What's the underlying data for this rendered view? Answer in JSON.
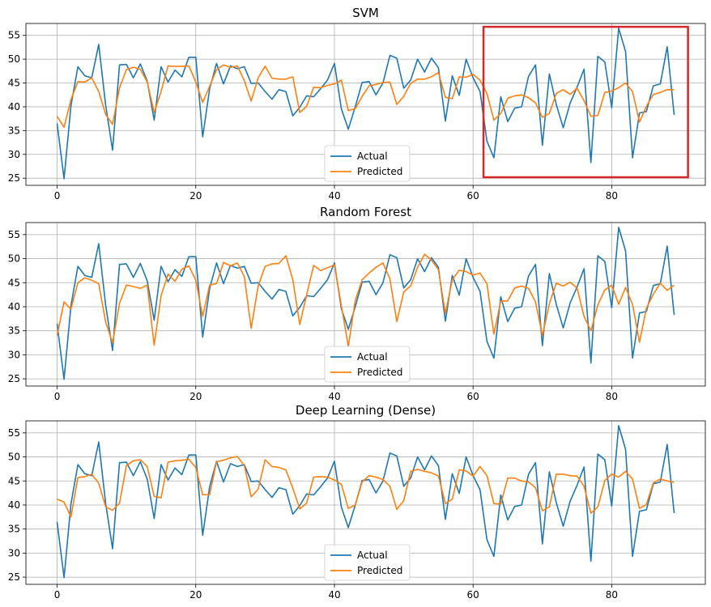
{
  "colors": {
    "actual": "#1f77b4",
    "predicted": "#ff7f0e",
    "highlight": "#d62728",
    "grid": "#b0b0b0"
  },
  "chart_data": [
    {
      "type": "line",
      "title": "SVM",
      "xlabel": "",
      "ylabel": "",
      "xlim": [
        -4.5,
        93.5
      ],
      "ylim": [
        23.5,
        57.5
      ],
      "xticks": [
        0,
        20,
        40,
        60,
        80
      ],
      "yticks": [
        25,
        30,
        35,
        40,
        45,
        50,
        55
      ],
      "grid": true,
      "legend": "lower-center",
      "highlight_x_range": [
        61.5,
        91
      ],
      "highlight_y_range": [
        25.2,
        56.8
      ],
      "series": [
        {
          "name": "Actual",
          "x_start": 0,
          "values": [
            36.5,
            24.9,
            40.2,
            48.4,
            46.5,
            46.1,
            53.1,
            40.3,
            30.9,
            48.8,
            48.9,
            46.1,
            49.0,
            45.4,
            37.2,
            48.4,
            45.2,
            47.7,
            46.3,
            50.4,
            50.4,
            33.7,
            43.8,
            49.1,
            44.8,
            48.6,
            48.0,
            48.4,
            44.9,
            45.0,
            43.2,
            41.6,
            43.6,
            43.2,
            38.1,
            39.9,
            42.3,
            42.1,
            43.8,
            45.6,
            49.1,
            39.6,
            35.3,
            40.0,
            45.1,
            45.3,
            42.5,
            45.0,
            50.8,
            50.2,
            43.9,
            45.6,
            50.0,
            47.3,
            50.2,
            48.2,
            37.0,
            46.5,
            42.4,
            50.0,
            46.1,
            43.2,
            32.8,
            29.3,
            42.1,
            36.9,
            39.7,
            40.0,
            46.4,
            48.8,
            31.9,
            46.9,
            40.5,
            35.6,
            40.8,
            44.1,
            47.9,
            28.3,
            50.6,
            49.4,
            39.8,
            56.5,
            51.6,
            29.3,
            38.7,
            39.0,
            44.4,
            44.8,
            52.6,
            38.3
          ]
        },
        {
          "name": "Predicted",
          "x_start": 0,
          "values": [
            38.0,
            35.7,
            41.5,
            45.3,
            45.2,
            46.1,
            43.2,
            38.4,
            36.3,
            44.0,
            47.8,
            48.3,
            47.9,
            45.2,
            38.8,
            43.2,
            48.6,
            48.5,
            48.5,
            48.6,
            45.2,
            40.9,
            44.3,
            47.8,
            48.8,
            48.3,
            48.6,
            45.5,
            41.2,
            46.1,
            48.5,
            46.0,
            45.8,
            45.8,
            46.3,
            38.8,
            40.1,
            44.1,
            44.0,
            44.5,
            44.8,
            45.6,
            39.2,
            39.6,
            42.2,
            44.4,
            44.7,
            45.1,
            45.2,
            40.5,
            42.2,
            44.9,
            45.8,
            45.8,
            46.3,
            47.2,
            42.0,
            41.7,
            46.3,
            46.2,
            46.8,
            45.6,
            42.8,
            37.2,
            38.6,
            41.8,
            42.3,
            42.5,
            41.9,
            40.8,
            37.8,
            38.6,
            42.8,
            43.6,
            42.6,
            43.9,
            41.3,
            38.0,
            38.2,
            43.0,
            43.3,
            44.0,
            45.0,
            43.2,
            36.8,
            40.1,
            42.6,
            43.0,
            43.6,
            43.6
          ]
        }
      ]
    },
    {
      "type": "line",
      "title": "Random Forest",
      "xlabel": "",
      "ylabel": "",
      "xlim": [
        -4.5,
        93.5
      ],
      "ylim": [
        23.5,
        57.5
      ],
      "xticks": [
        0,
        20,
        40,
        60,
        80
      ],
      "yticks": [
        25,
        30,
        35,
        40,
        45,
        50,
        55
      ],
      "grid": true,
      "legend": "lower-center",
      "series": [
        {
          "name": "Actual",
          "x_start": 0,
          "values": [
            36.5,
            24.9,
            40.2,
            48.4,
            46.5,
            46.1,
            53.1,
            40.3,
            30.9,
            48.8,
            48.9,
            46.1,
            49.0,
            45.4,
            37.2,
            48.4,
            45.2,
            47.7,
            46.3,
            50.4,
            50.4,
            33.7,
            43.8,
            49.1,
            44.8,
            48.6,
            48.0,
            48.4,
            44.9,
            45.0,
            43.2,
            41.6,
            43.6,
            43.2,
            38.1,
            39.9,
            42.3,
            42.1,
            43.8,
            45.6,
            49.1,
            39.6,
            35.3,
            40.0,
            45.1,
            45.3,
            42.5,
            45.0,
            50.8,
            50.2,
            43.9,
            45.6,
            50.0,
            47.3,
            50.2,
            48.2,
            37.0,
            46.5,
            42.4,
            50.0,
            46.1,
            43.2,
            32.8,
            29.3,
            42.1,
            36.9,
            39.7,
            40.0,
            46.4,
            48.8,
            31.9,
            46.9,
            40.5,
            35.6,
            40.8,
            44.1,
            47.9,
            28.3,
            50.6,
            49.4,
            39.8,
            56.5,
            51.6,
            29.3,
            38.7,
            39.0,
            44.4,
            44.8,
            52.6,
            38.3
          ]
        },
        {
          "name": "Predicted",
          "x_start": 0,
          "values": [
            34.0,
            41.0,
            39.5,
            45.0,
            46.0,
            45.5,
            44.8,
            36.8,
            32.5,
            40.7,
            44.5,
            44.2,
            43.8,
            44.5,
            32.0,
            42.3,
            46.8,
            45.3,
            47.8,
            48.5,
            45.5,
            38.0,
            44.5,
            44.8,
            49.2,
            48.5,
            49.1,
            46.3,
            35.5,
            44.3,
            48.4,
            48.9,
            49.0,
            50.6,
            45.6,
            36.3,
            42.5,
            48.6,
            47.5,
            48.1,
            48.7,
            40.3,
            31.7,
            41.3,
            45.6,
            47.0,
            48.2,
            49.1,
            45.8,
            36.9,
            43.1,
            44.3,
            48.2,
            50.9,
            49.7,
            47.7,
            38.6,
            45.6,
            47.6,
            47.3,
            46.6,
            47.0,
            44.8,
            34.3,
            41.2,
            41.2,
            43.9,
            44.3,
            43.8,
            41.0,
            34.0,
            40.6,
            44.9,
            44.3,
            45.1,
            43.9,
            38.0,
            35.0,
            40.4,
            43.5,
            44.5,
            40.5,
            44.0,
            40.5,
            32.6,
            39.7,
            42.6,
            44.9,
            43.4,
            44.5
          ]
        }
      ]
    },
    {
      "type": "line",
      "title": "Deep Learning (Dense)",
      "xlabel": "",
      "ylabel": "",
      "xlim": [
        -4.5,
        93.5
      ],
      "ylim": [
        23.5,
        57.5
      ],
      "xticks": [
        0,
        20,
        40,
        60,
        80
      ],
      "yticks": [
        25,
        30,
        35,
        40,
        45,
        50,
        55
      ],
      "grid": true,
      "legend": "lower-center",
      "series": [
        {
          "name": "Actual",
          "x_start": 0,
          "values": [
            36.5,
            24.9,
            40.2,
            48.4,
            46.5,
            46.1,
            53.1,
            40.3,
            30.9,
            48.8,
            48.9,
            46.1,
            49.0,
            45.4,
            37.2,
            48.4,
            45.2,
            47.7,
            46.3,
            50.4,
            50.4,
            33.7,
            43.8,
            49.1,
            44.8,
            48.6,
            48.0,
            48.4,
            44.9,
            45.0,
            43.2,
            41.6,
            43.6,
            43.2,
            38.1,
            39.9,
            42.3,
            42.1,
            43.8,
            45.6,
            49.1,
            39.6,
            35.3,
            40.0,
            45.1,
            45.3,
            42.5,
            45.0,
            50.8,
            50.2,
            43.9,
            45.6,
            50.0,
            47.3,
            50.2,
            48.2,
            37.0,
            46.5,
            42.4,
            50.0,
            46.1,
            43.2,
            32.8,
            29.3,
            42.1,
            36.9,
            39.7,
            40.0,
            46.4,
            48.8,
            31.9,
            46.9,
            40.5,
            35.6,
            40.8,
            44.1,
            47.9,
            28.3,
            50.6,
            49.4,
            39.8,
            56.5,
            51.6,
            29.3,
            38.7,
            39.0,
            44.4,
            44.8,
            52.6,
            38.3
          ]
        },
        {
          "name": "Predicted",
          "x_start": 0,
          "values": [
            41.2,
            40.6,
            37.5,
            45.7,
            45.9,
            46.4,
            44.5,
            39.6,
            38.9,
            40.4,
            48.2,
            49.2,
            49.4,
            48.0,
            41.8,
            41.5,
            48.9,
            49.2,
            49.3,
            49.5,
            47.8,
            42.1,
            42.2,
            49.0,
            49.3,
            49.8,
            50.1,
            48.2,
            41.7,
            43.3,
            49.4,
            48.0,
            47.8,
            47.3,
            43.5,
            39.2,
            40.4,
            45.8,
            45.9,
            45.8,
            45.2,
            44.3,
            39.3,
            40.0,
            44.8,
            46.1,
            45.8,
            45.3,
            43.9,
            39.1,
            40.9,
            47.0,
            47.4,
            47.0,
            46.7,
            46.0,
            40.3,
            41.2,
            47.3,
            47.1,
            46.0,
            48.0,
            46.1,
            40.3,
            40.2,
            45.6,
            45.6,
            45.0,
            44.8,
            43.6,
            38.8,
            39.6,
            46.4,
            46.4,
            46.1,
            46.0,
            43.9,
            38.3,
            39.6,
            45.1,
            46.4,
            45.8,
            47.0,
            45.4,
            39.3,
            40.1,
            44.6,
            45.4,
            45.0,
            44.7
          ]
        }
      ]
    }
  ]
}
